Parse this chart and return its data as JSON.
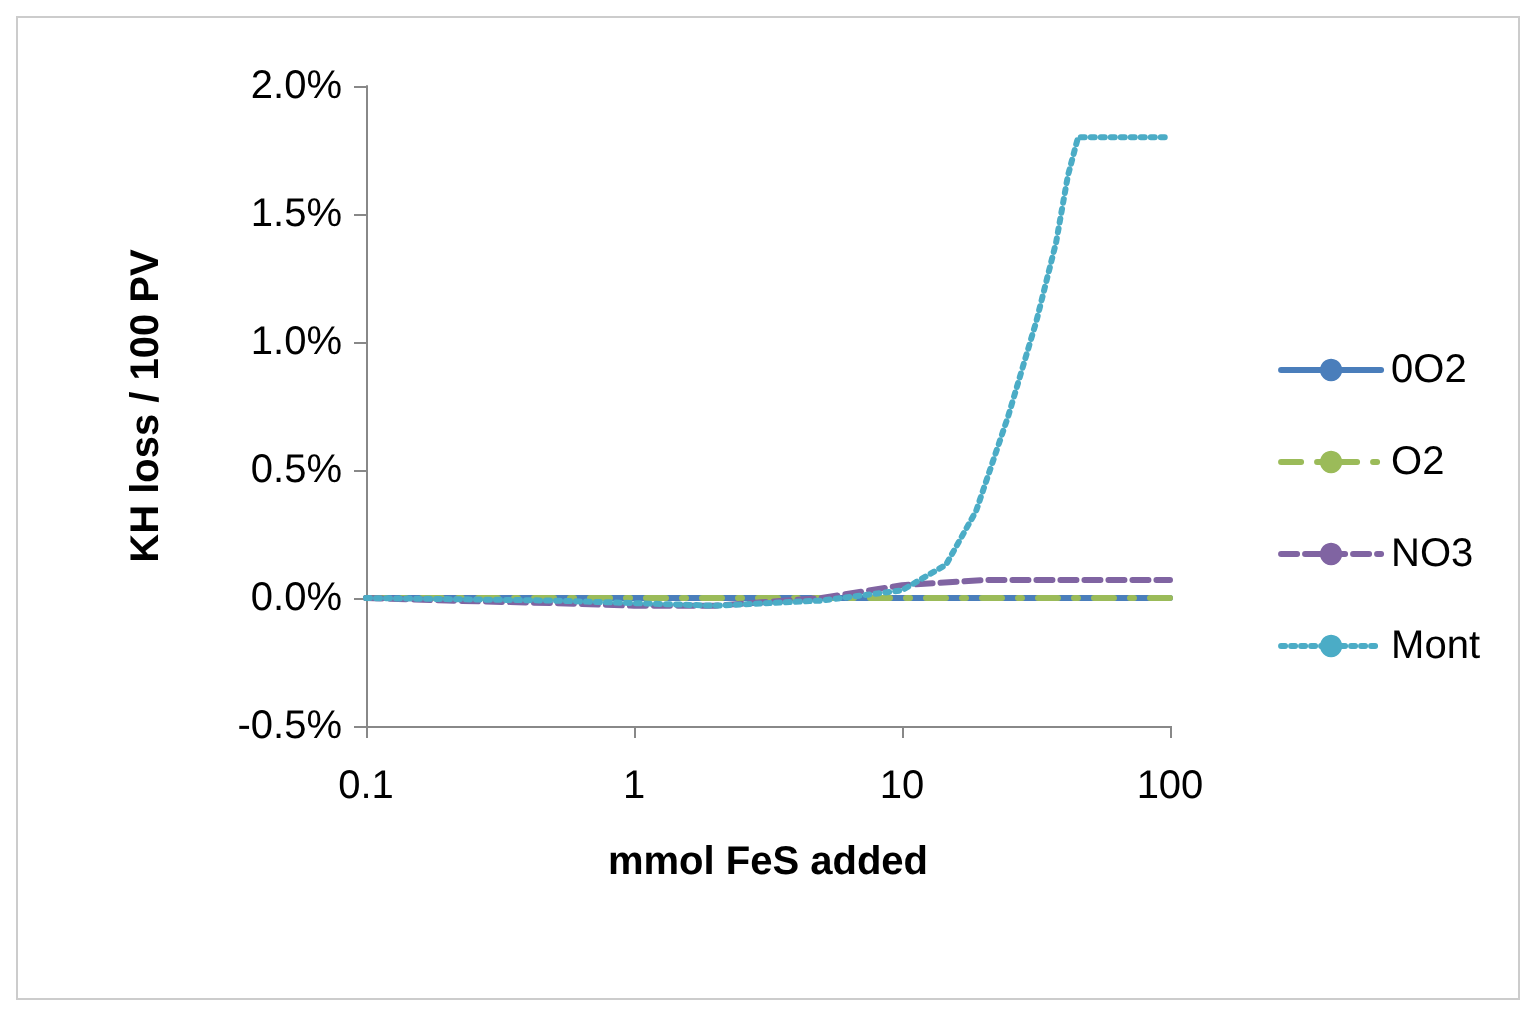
{
  "chart_data": {
    "type": "line",
    "xlabel": "mmol FeS added",
    "ylabel": "KH loss / 100 PV",
    "log": "x",
    "grid": false,
    "legend": "right",
    "marker": "none",
    "xlim": [
      0.1,
      100
    ],
    "xticks": [
      0.1,
      1,
      10,
      100
    ],
    "ylim": [
      -0.5,
      2.0
    ],
    "yticks": [
      {
        "value": -0.5,
        "label": "-0.5%"
      },
      {
        "value": 0,
        "label": "0.0%"
      },
      {
        "value": 0.5,
        "label": "0.5%"
      },
      {
        "value": 1,
        "label": "1.0%"
      },
      {
        "value": 1.5,
        "label": "1.5%"
      },
      {
        "value": 2,
        "label": "2.0%"
      }
    ],
    "x": [
      0.1,
      0.2,
      0.5,
      1,
      2,
      5,
      10,
      20,
      50,
      100
    ],
    "series": [
      {
        "name": "0O2",
        "color": "#4a7ebb",
        "line_style": "solid",
        "values": [
          0,
          0,
          0,
          0,
          0,
          0,
          0,
          0,
          0,
          0
        ]
      },
      {
        "name": "O2",
        "color": "#9bbb59",
        "line_style": "dashdot",
        "values": [
          0,
          0,
          0,
          0,
          0,
          0,
          0,
          0,
          0,
          0
        ]
      },
      {
        "name": "NO3",
        "color": "#8064a2",
        "line_style": "dashed",
        "values": [
          0,
          -0.01,
          -0.02,
          -0.03,
          -0.03,
          0,
          0.05,
          0.07,
          0.07,
          0.07
        ]
      },
      {
        "name": "Mont",
        "color": "#4bacc6",
        "line_style": "dotted",
        "x": [
          0.1,
          0.5,
          1,
          2,
          5,
          10,
          14.6,
          18.9,
          24.9,
          31.7,
          37.6,
          41.6,
          45.4,
          100
        ],
        "values": [
          0,
          -0.01,
          -0.02,
          -0.03,
          -0.01,
          0.03,
          0.13,
          0.34,
          0.71,
          1.08,
          1.39,
          1.65,
          1.8,
          1.8
        ]
      }
    ]
  }
}
